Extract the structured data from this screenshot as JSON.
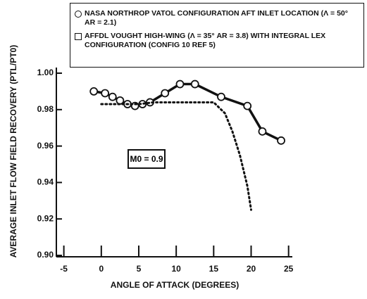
{
  "chart_data": {
    "type": "line",
    "ylabel": "AVERAGE INLET FLOW FIELD RECOVERY (PTL/PT0)",
    "xlabel": "ANGLE OF ATTACK (DEGREES)",
    "annotation": "M0 = 0.9",
    "xlim": [
      -6,
      25.5
    ],
    "xticks": [
      -5,
      0,
      5,
      10,
      15,
      20,
      25
    ],
    "ylim": [
      0.9,
      1.0
    ],
    "yticks": [
      {
        "value": 0.9,
        "label": "0.90"
      },
      0.92,
      0.94,
      0.96,
      0.98,
      {
        "value": 1.0,
        "label": "1.00"
      }
    ],
    "series": [
      {
        "name": "NASA NORTHROP VATOL CONFIGURATION AFT INLET LOCATION (Λ = 50° AR = 2.1)",
        "color": "#111111",
        "line_style": "solid",
        "marker": "circle",
        "x": [
          -1,
          0.5,
          1.5,
          2.5,
          3.5,
          4.5,
          5.5,
          6.5,
          8.5,
          10.5,
          12.5,
          16,
          19.5,
          21.5,
          24
        ],
        "values": [
          0.99,
          0.989,
          0.987,
          0.985,
          0.983,
          0.982,
          0.983,
          0.984,
          0.989,
          0.994,
          0.994,
          0.987,
          0.982,
          0.968,
          0.963
        ]
      },
      {
        "name": "AFFDL VOUGHT HIGH-WING (Λ = 35° AR = 3.8) WITH INTEGRAL LEX CONFIGURATION (CONFIG 10 REF 5)",
        "color": "#111111",
        "line_style": "dotted",
        "marker": "none",
        "x": [
          0,
          5,
          7,
          15,
          16.5,
          17.5,
          18.5,
          19.5,
          20
        ],
        "values": [
          0.983,
          0.983,
          0.984,
          0.984,
          0.978,
          0.968,
          0.955,
          0.938,
          0.925
        ]
      }
    ]
  }
}
